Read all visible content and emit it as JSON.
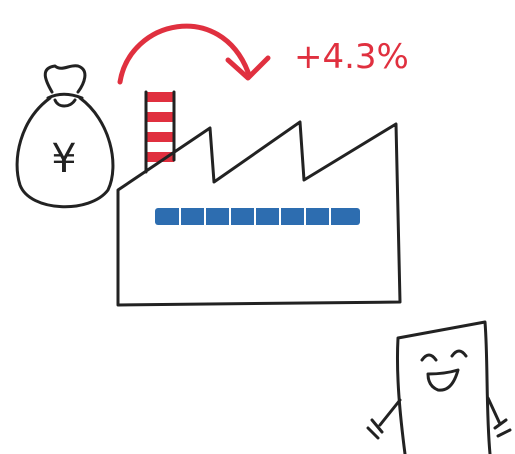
{
  "label": "+4.3%",
  "bag_symbol": "¥"
}
